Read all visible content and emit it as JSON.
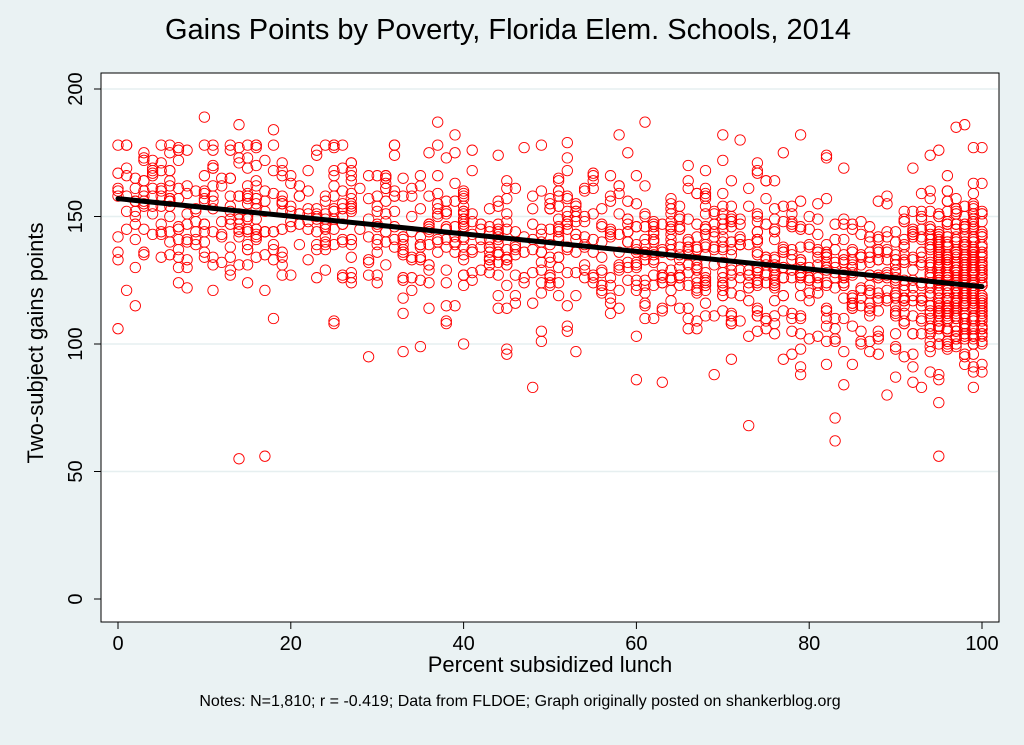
{
  "chart_data": {
    "type": "scatter",
    "title": "Gains Points by Poverty, Florida Elem. Schools, 2014",
    "xlabel": "Percent subsidized lunch",
    "ylabel": "Two-subject gains points",
    "xlim": [
      0,
      100
    ],
    "ylim": [
      0,
      200
    ],
    "x_ticks": [
      0,
      20,
      40,
      60,
      80,
      100
    ],
    "y_ticks": [
      0,
      50,
      100,
      150,
      200
    ],
    "grid": "horizontal",
    "legend": "none",
    "notes": "Notes: N=1,810; r = -0.419; Data from FLDOE; Graph originally posted on shankerblog.org",
    "marker_color": "#ff0000",
    "fit_color": "#000000",
    "fit_line": {
      "x": [
        0,
        100
      ],
      "y": [
        157,
        122.5
      ]
    },
    "highlighted_points": [
      [
        0,
        106
      ],
      [
        0,
        158
      ],
      [
        1,
        121
      ],
      [
        1,
        169
      ],
      [
        2,
        130
      ],
      [
        7,
        130
      ],
      [
        7,
        176
      ],
      [
        10,
        189
      ],
      [
        14,
        186
      ],
      [
        14,
        55
      ],
      [
        17,
        56
      ],
      [
        18,
        110
      ],
      [
        18,
        184
      ],
      [
        29,
        95
      ],
      [
        33,
        97
      ],
      [
        35,
        99
      ],
      [
        37,
        187
      ],
      [
        39,
        182
      ],
      [
        40,
        100
      ],
      [
        45,
        96
      ],
      [
        48,
        83
      ],
      [
        52,
        179
      ],
      [
        53,
        97
      ],
      [
        58,
        182
      ],
      [
        60,
        86
      ],
      [
        61,
        187
      ],
      [
        63,
        85
      ],
      [
        70,
        182
      ],
      [
        72,
        180
      ],
      [
        73,
        68
      ],
      [
        79,
        182
      ],
      [
        83,
        62
      ],
      [
        83,
        71
      ],
      [
        84,
        84
      ],
      [
        89,
        80
      ],
      [
        93,
        83
      ],
      [
        95,
        56
      ],
      [
        95,
        77
      ],
      [
        95,
        176
      ],
      [
        97,
        185
      ],
      [
        98,
        186
      ],
      [
        100,
        177
      ]
    ]
  }
}
